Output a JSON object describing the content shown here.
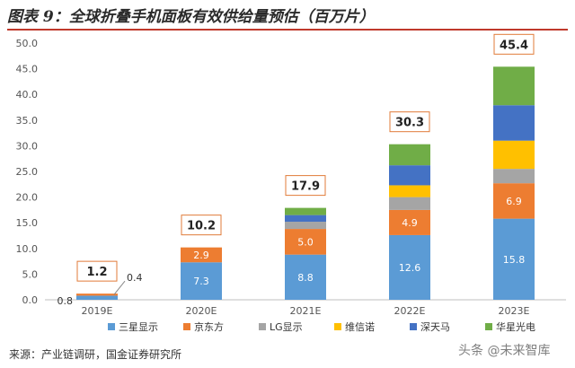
{
  "title": "图表 9：全球折叠手机面板有效供给量预估（百万片）",
  "source": "来源：产业链调研，国金证券研究所",
  "watermark": "头条 @未来智库",
  "chart_data": {
    "type": "bar",
    "stacked": true,
    "categories": [
      "2019E",
      "2020E",
      "2021E",
      "2022E",
      "2023E"
    ],
    "series": [
      {
        "name": "三星显示",
        "color": "#5b9bd5",
        "values": [
          0.8,
          7.3,
          8.8,
          12.6,
          15.8
        ]
      },
      {
        "name": "京东方",
        "color": "#ed7d31",
        "values": [
          0.4,
          2.9,
          5.0,
          4.9,
          6.9
        ]
      },
      {
        "name": "LG显示",
        "color": "#a5a5a5",
        "values": [
          0,
          0,
          1.4,
          2.5,
          2.8
        ]
      },
      {
        "name": "维信诺",
        "color": "#ffc000",
        "values": [
          0,
          0,
          0,
          2.3,
          5.5
        ]
      },
      {
        "name": "深天马",
        "color": "#4472c4",
        "values": [
          0,
          0,
          1.3,
          3.9,
          6.9
        ]
      },
      {
        "name": "华星光电",
        "color": "#70ad47",
        "values": [
          0,
          0,
          1.4,
          4.1,
          7.5
        ]
      }
    ],
    "segment_labels": {
      "三星显示": [
        "0.8",
        "7.3",
        "8.8",
        "12.6",
        "15.8"
      ],
      "京东方": [
        "0.4",
        "2.9",
        "5.0",
        "4.9",
        "6.9"
      ]
    },
    "totals": [
      "1.2",
      "10.2",
      "17.9",
      "30.3",
      "45.4"
    ],
    "y_ticks": [
      "0.0",
      "5.0",
      "10.0",
      "15.0",
      "20.0",
      "25.0",
      "30.0",
      "35.0",
      "40.0",
      "45.0",
      "50.0"
    ],
    "ylim": [
      0,
      50
    ],
    "legend_position": "bottom",
    "grid": false
  }
}
